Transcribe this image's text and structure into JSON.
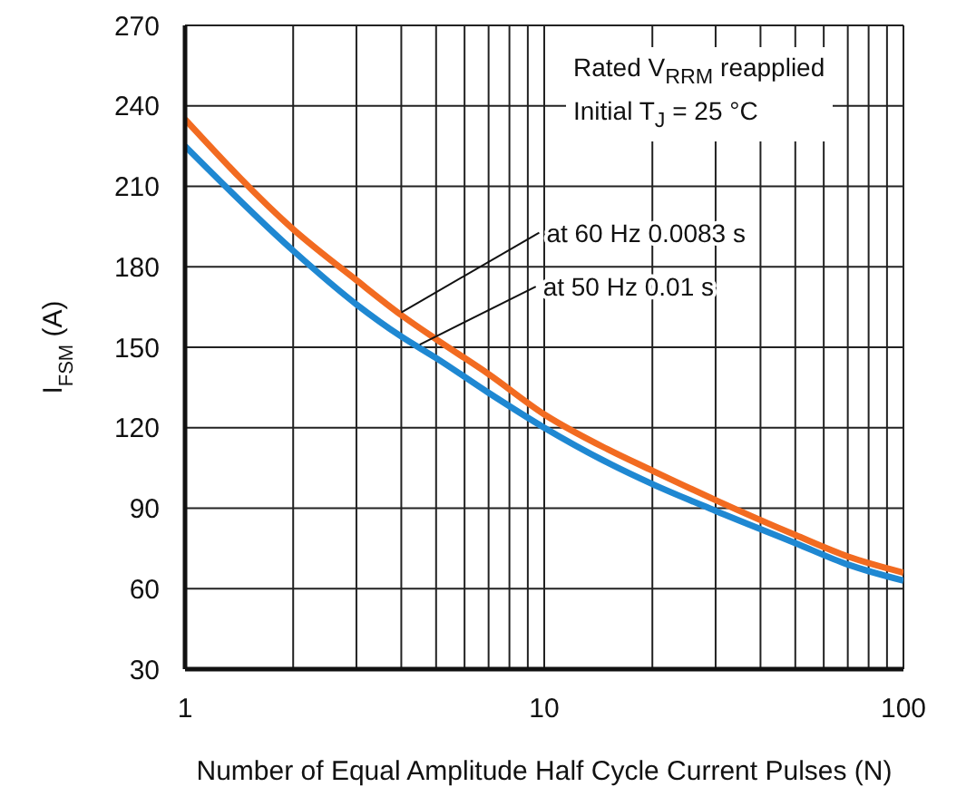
{
  "chart_data": {
    "type": "line",
    "xlabel": "Number of Equal Amplitude Half Cycle Current Pulses (N)",
    "ylabel": "I$_{FSM}$ (A)",
    "log": "x",
    "xlim": [
      1,
      100
    ],
    "ylim": [
      30,
      270
    ],
    "xticks": [
      1,
      {
        "value": 2,
        "label": null
      },
      {
        "value": 3,
        "label": null
      },
      {
        "value": 4,
        "label": null
      },
      {
        "value": 5,
        "label": null
      },
      {
        "value": 6,
        "label": null
      },
      {
        "value": 7,
        "label": null
      },
      {
        "value": 8,
        "label": null
      },
      {
        "value": 9,
        "label": null
      },
      10,
      {
        "value": 20,
        "label": null
      },
      {
        "value": 30,
        "label": null
      },
      {
        "value": 40,
        "label": null
      },
      {
        "value": 50,
        "label": null
      },
      {
        "value": 60,
        "label": null
      },
      {
        "value": 70,
        "label": null
      },
      {
        "value": 80,
        "label": null
      },
      {
        "value": 90,
        "label": null
      },
      100
    ],
    "yticks": [
      30,
      60,
      90,
      120,
      150,
      180,
      210,
      240,
      270
    ],
    "grid": true,
    "marker": "none",
    "line_style": "solid",
    "x": [
      1,
      2,
      3,
      4,
      5,
      7,
      10,
      15,
      20,
      30,
      50,
      70,
      100
    ],
    "series": [
      {
        "color": "#f26b21",
        "values": [
          235,
          194,
          175,
          162,
          153,
          140,
          125,
          112,
          104,
          93,
          80,
          72,
          66
        ]
      },
      {
        "color": "#1f88d2",
        "values": [
          225,
          186,
          166,
          154,
          146,
          133,
          120,
          107,
          99,
          89,
          77,
          69,
          63
        ]
      }
    ],
    "annotations": [
      {
        "text": "at 60 Hz 0.0083 s",
        "x": 4,
        "y": 163
      },
      {
        "text": "at 50 Hz 0.01 s",
        "x": 4.5,
        "y": 151
      },
      "Rated V$_{RRM}$ reapplied",
      "Initial T$_{J}$ = 25 °C"
    ]
  }
}
